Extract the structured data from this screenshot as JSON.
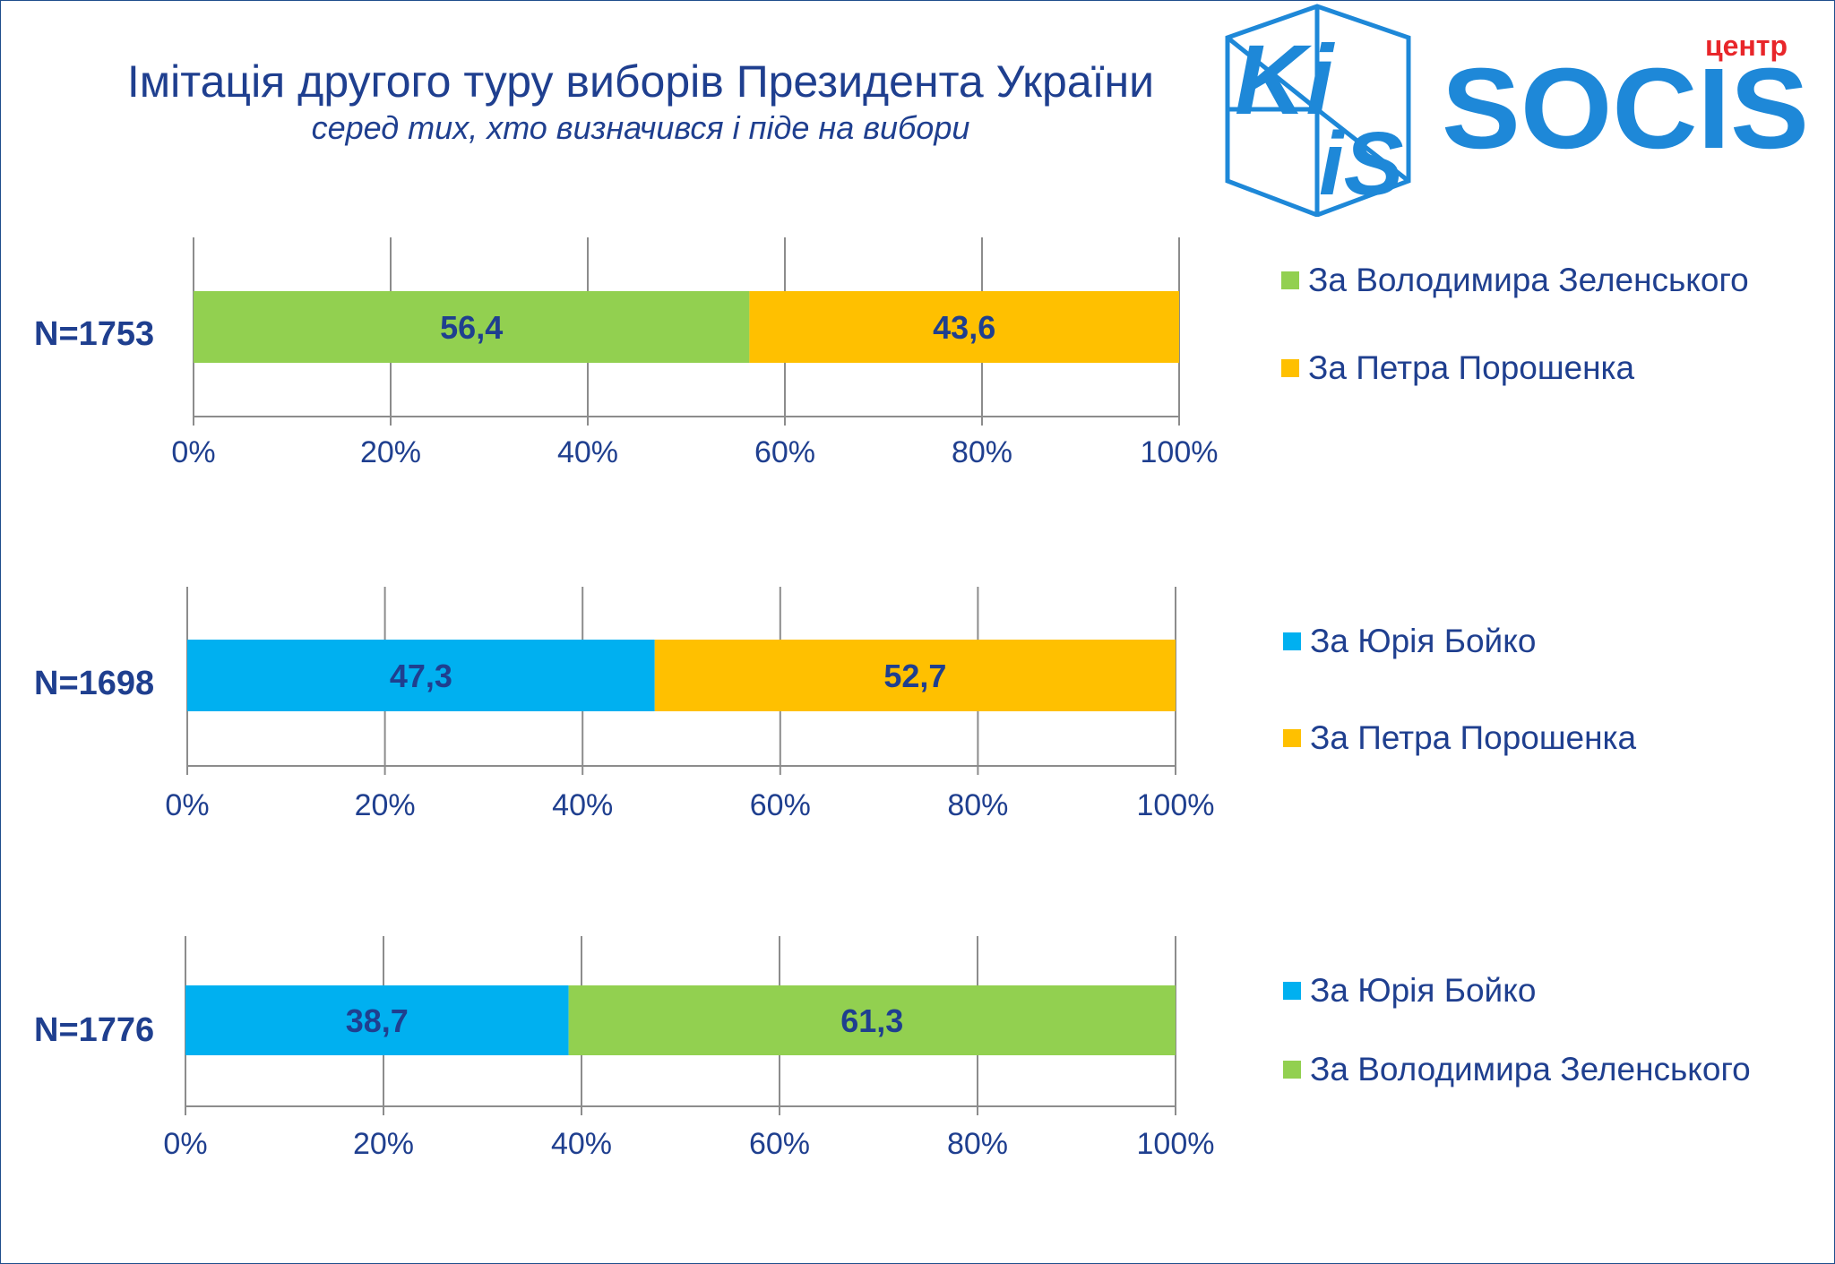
{
  "header": {
    "title": "Імітація другого туру виборів Президента України",
    "subtitle": "серед тих, хто визначився і піде на вибори"
  },
  "logos": {
    "kiis": {
      "text": "KIIS",
      "icon": "kiis-cube-logo"
    },
    "socis": {
      "text": "SOCIS",
      "small_text": "центр",
      "icon": "socis-logo"
    }
  },
  "colors": {
    "zelensky": "#92d050",
    "poroshenko": "#ffc000",
    "boyko": "#00b0f0",
    "text": "#1f3f8f",
    "grid": "#8c8c8c"
  },
  "chart_data": [
    {
      "type": "bar",
      "orientation": "horizontal-stacked-100",
      "category": "N=1753",
      "x_ticks": [
        "0%",
        "20%",
        "40%",
        "60%",
        "80%",
        "100%"
      ],
      "xlim": [
        0,
        100
      ],
      "series": [
        {
          "name": "За Володимира Зеленського",
          "value": 56.4,
          "label": "56,4",
          "color": "#92d050"
        },
        {
          "name": "За Петра Порошенка",
          "value": 43.6,
          "label": "43,6",
          "color": "#ffc000"
        }
      ],
      "legend_position": "right"
    },
    {
      "type": "bar",
      "orientation": "horizontal-stacked-100",
      "category": "N=1698",
      "x_ticks": [
        "0%",
        "20%",
        "40%",
        "60%",
        "80%",
        "100%"
      ],
      "xlim": [
        0,
        100
      ],
      "series": [
        {
          "name": "За Юрія Бойко",
          "value": 47.3,
          "label": "47,3",
          "color": "#00b0f0"
        },
        {
          "name": "За Петра Порошенка",
          "value": 52.7,
          "label": "52,7",
          "color": "#ffc000"
        }
      ],
      "legend_position": "right"
    },
    {
      "type": "bar",
      "orientation": "horizontal-stacked-100",
      "category": "N=1776",
      "x_ticks": [
        "0%",
        "20%",
        "40%",
        "60%",
        "80%",
        "100%"
      ],
      "xlim": [
        0,
        100
      ],
      "series": [
        {
          "name": "За Юрія Бойко",
          "value": 38.7,
          "label": "38,7",
          "color": "#00b0f0"
        },
        {
          "name": "За Володимира Зеленського",
          "value": 61.3,
          "label": "61,3",
          "color": "#92d050"
        }
      ],
      "legend_position": "right"
    }
  ]
}
